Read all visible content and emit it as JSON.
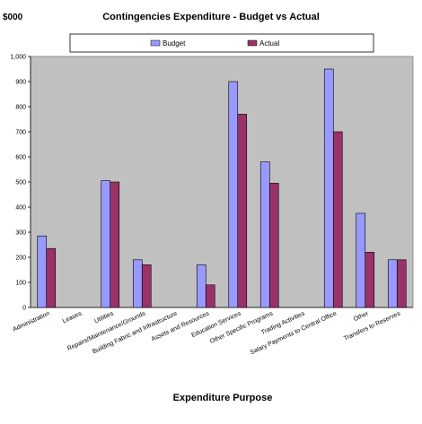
{
  "chart_data": {
    "type": "bar",
    "title": "Contingencies Expenditure - Budget vs Actual",
    "unit_label": "$000",
    "xlabel": "Expenditure Purpose",
    "ylabel": "",
    "ylim": [
      0,
      1000
    ],
    "yticks": [
      0,
      100,
      200,
      300,
      400,
      500,
      600,
      700,
      800,
      900,
      1000
    ],
    "ytick_labels": [
      "0",
      "100",
      "200",
      "300",
      "400",
      "500",
      "600",
      "700",
      "800",
      "900",
      "1,000"
    ],
    "grid": false,
    "legend_position": "top",
    "plot_background": "#c0c0c0",
    "categories": [
      "Administration",
      "Leases",
      "Utilities",
      "Repairs/Maintenance/Grounds",
      "Building Fabric and Infrastructure",
      "Assets and Resources",
      "Education Services",
      "Other Specific Programs",
      "Trading Activities",
      "Salary Payments to Central Office",
      "Other",
      "Transfers to Reserves"
    ],
    "series": [
      {
        "name": "Budget",
        "color": "#9999ff",
        "values": [
          285,
          0,
          505,
          190,
          0,
          170,
          900,
          580,
          0,
          950,
          375,
          190
        ]
      },
      {
        "name": "Actual",
        "color": "#993366",
        "values": [
          235,
          0,
          500,
          170,
          0,
          90,
          770,
          495,
          0,
          700,
          220,
          190
        ]
      }
    ]
  }
}
